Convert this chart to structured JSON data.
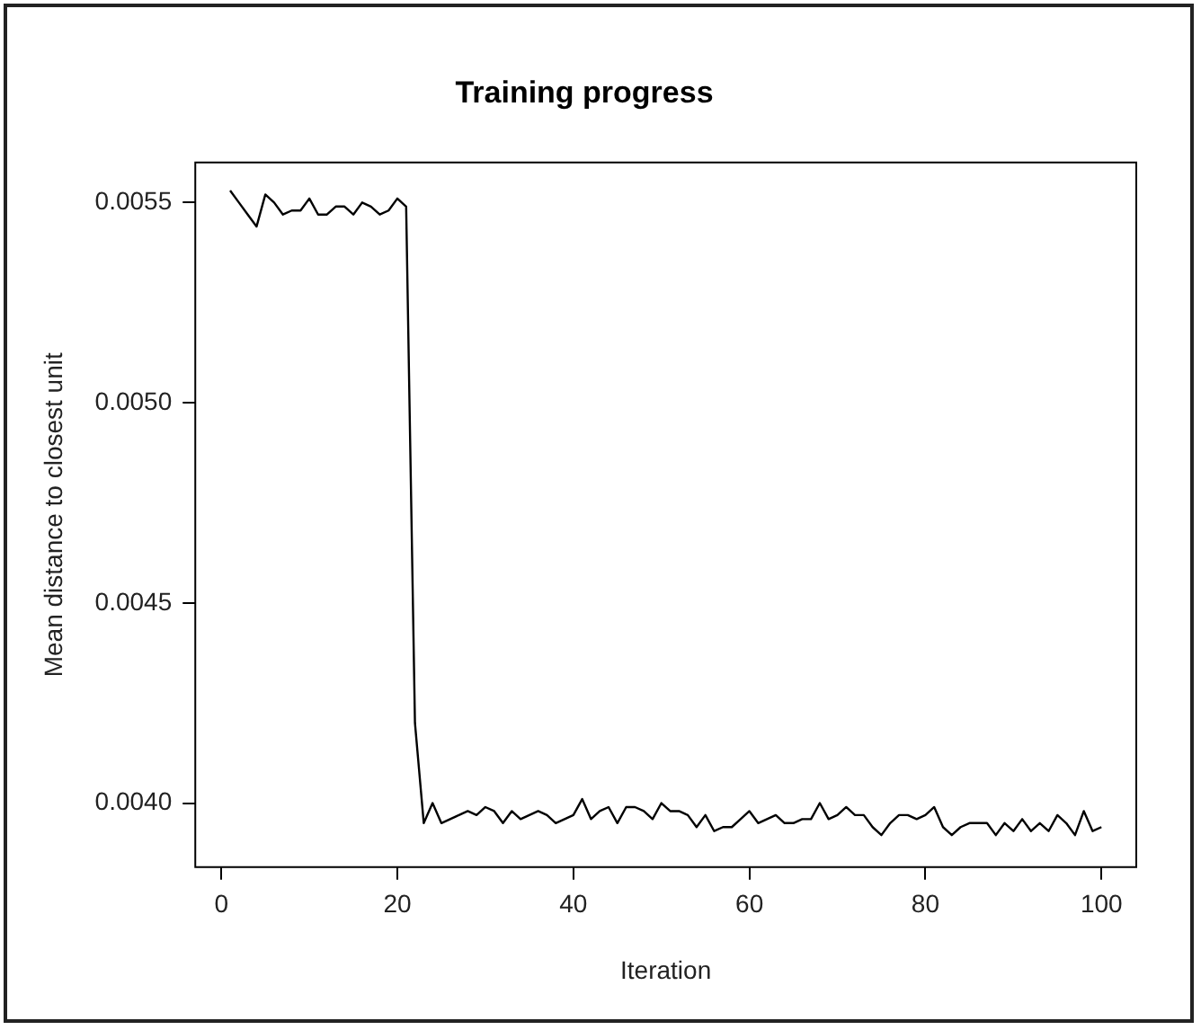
{
  "chart_data": {
    "type": "line",
    "title": "Training progress",
    "xlabel": "Iteration",
    "ylabel": "Mean distance to closest unit",
    "x": [
      1,
      2,
      3,
      4,
      5,
      6,
      7,
      8,
      9,
      10,
      11,
      12,
      13,
      14,
      15,
      16,
      17,
      18,
      19,
      20,
      21,
      22,
      23,
      24,
      25,
      26,
      27,
      28,
      29,
      30,
      31,
      32,
      33,
      34,
      35,
      36,
      37,
      38,
      39,
      40,
      41,
      42,
      43,
      44,
      45,
      46,
      47,
      48,
      49,
      50,
      51,
      52,
      53,
      54,
      55,
      56,
      57,
      58,
      59,
      60,
      61,
      62,
      63,
      64,
      65,
      66,
      67,
      68,
      69,
      70,
      71,
      72,
      73,
      74,
      75,
      76,
      77,
      78,
      79,
      80,
      81,
      82,
      83,
      84,
      85,
      86,
      87,
      88,
      89,
      90,
      91,
      92,
      93,
      94,
      95,
      96,
      97,
      98,
      99,
      100
    ],
    "series": [
      {
        "color": "#000000",
        "values": [
          0.00553,
          0.0055,
          0.00547,
          0.00544,
          0.00552,
          0.0055,
          0.00547,
          0.00548,
          0.00548,
          0.00551,
          0.00547,
          0.00547,
          0.00549,
          0.00549,
          0.00547,
          0.0055,
          0.00549,
          0.00547,
          0.00548,
          0.00551,
          0.00549,
          0.0042,
          0.00395,
          0.004,
          0.00395,
          0.00396,
          0.00397,
          0.00398,
          0.00397,
          0.00399,
          0.00398,
          0.00395,
          0.00398,
          0.00396,
          0.00397,
          0.00398,
          0.00397,
          0.00395,
          0.00396,
          0.00397,
          0.00401,
          0.00396,
          0.00398,
          0.00399,
          0.00395,
          0.00399,
          0.00399,
          0.00398,
          0.00396,
          0.004,
          0.00398,
          0.00398,
          0.00397,
          0.00394,
          0.00397,
          0.00393,
          0.00394,
          0.00394,
          0.00396,
          0.00398,
          0.00395,
          0.00396,
          0.00397,
          0.00395,
          0.00395,
          0.00396,
          0.00396,
          0.004,
          0.00396,
          0.00397,
          0.00399,
          0.00397,
          0.00397,
          0.00394,
          0.00392,
          0.00395,
          0.00397,
          0.00397,
          0.00396,
          0.00397,
          0.00399,
          0.00394,
          0.00392,
          0.00394,
          0.00395,
          0.00395,
          0.00395,
          0.00392,
          0.00395,
          0.00393,
          0.00396,
          0.00393,
          0.00395,
          0.00393,
          0.00397,
          0.00395,
          0.00392,
          0.00398,
          0.00393,
          0.00394
        ]
      }
    ],
    "xlim": [
      -2.96,
      103.96
    ],
    "xticks": [
      0,
      20,
      40,
      60,
      80,
      100
    ],
    "ylim": [
      0.00384,
      0.0056
    ],
    "yticks": [
      {
        "value": 0.004,
        "label": "0.0040"
      },
      {
        "value": 0.0045,
        "label": "0.0045"
      },
      {
        "value": 0.005,
        "label": "0.0050"
      },
      {
        "value": 0.0055,
        "label": "0.0055"
      }
    ],
    "grid": false,
    "legend": false,
    "marker": "none",
    "line_style": "solid"
  }
}
